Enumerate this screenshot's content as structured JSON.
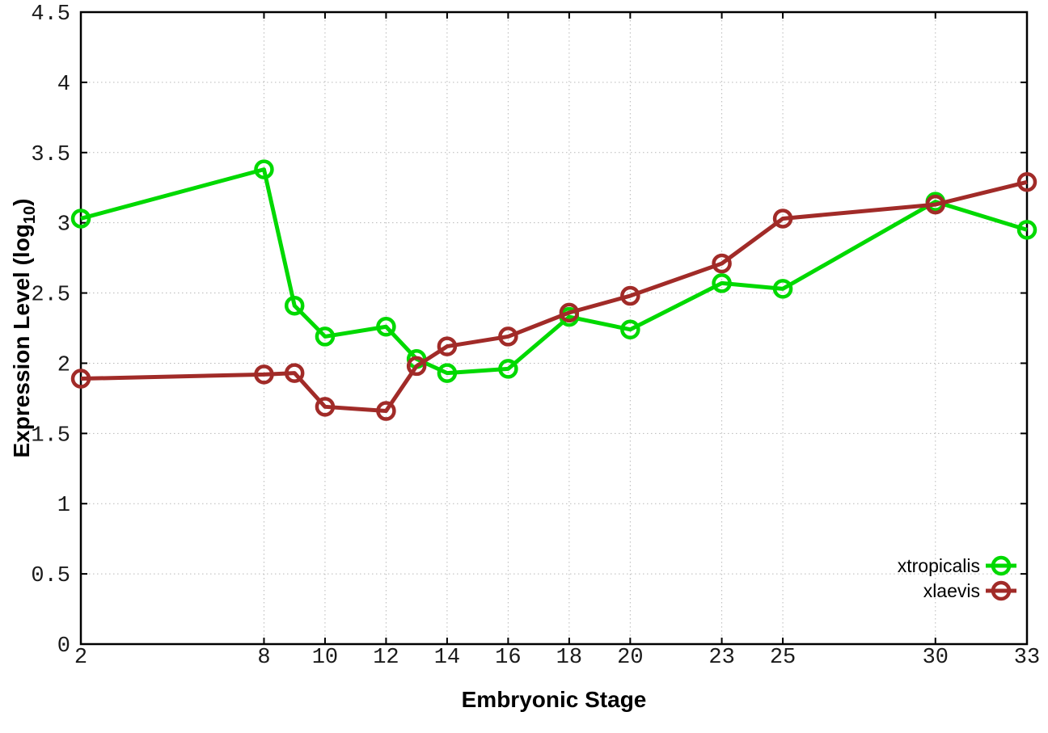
{
  "labels": {
    "xlabel": "Embryonic Stage",
    "ylabel_prefix": "Expression Level (log",
    "ylabel_sub": "10",
    "ylabel_suffix": ")"
  },
  "chart_data": {
    "type": "line",
    "title": "",
    "xlabel": "Embryonic Stage",
    "ylabel": "Expression Level (log10)",
    "x": [
      2,
      8,
      9,
      10,
      12,
      13,
      14,
      16,
      18,
      20,
      23,
      25,
      30,
      33
    ],
    "series": [
      {
        "name": "xtropicalis",
        "color": "#00d900",
        "values": [
          3.03,
          3.38,
          2.41,
          2.19,
          2.26,
          2.03,
          1.93,
          1.96,
          2.33,
          2.24,
          2.57,
          2.53,
          3.15,
          2.95
        ]
      },
      {
        "name": "xlaevis",
        "color": "#a12b28",
        "values": [
          1.89,
          1.92,
          1.93,
          1.69,
          1.66,
          1.98,
          2.12,
          2.19,
          2.36,
          2.48,
          2.71,
          3.03,
          3.13,
          3.29
        ]
      }
    ],
    "xlim": [
      2,
      33
    ],
    "ylim": [
      0,
      4.5
    ],
    "xticks": {
      "values": [
        2,
        8,
        10,
        12,
        14,
        16,
        18,
        20,
        23,
        25,
        30,
        33
      ],
      "labels": [
        "2",
        "8",
        "10",
        "12",
        "14",
        "16",
        "18",
        "20",
        "23",
        "25",
        "30",
        "33"
      ]
    },
    "yticks": {
      "values": [
        0,
        0.5,
        1,
        1.5,
        2,
        2.5,
        3,
        3.5,
        4,
        4.5
      ],
      "labels": [
        "0",
        "0.5",
        "1",
        "1.5",
        "2",
        "2.5",
        "3",
        "3.5",
        "4",
        "4.5"
      ]
    },
    "grid": true,
    "legend_position": "bottom-right",
    "background": "#ffffff",
    "colors": {
      "xtropicalis": "#00d900",
      "xlaevis": "#a12b28",
      "grid": "#b8b8b8",
      "border": "#000000"
    }
  }
}
